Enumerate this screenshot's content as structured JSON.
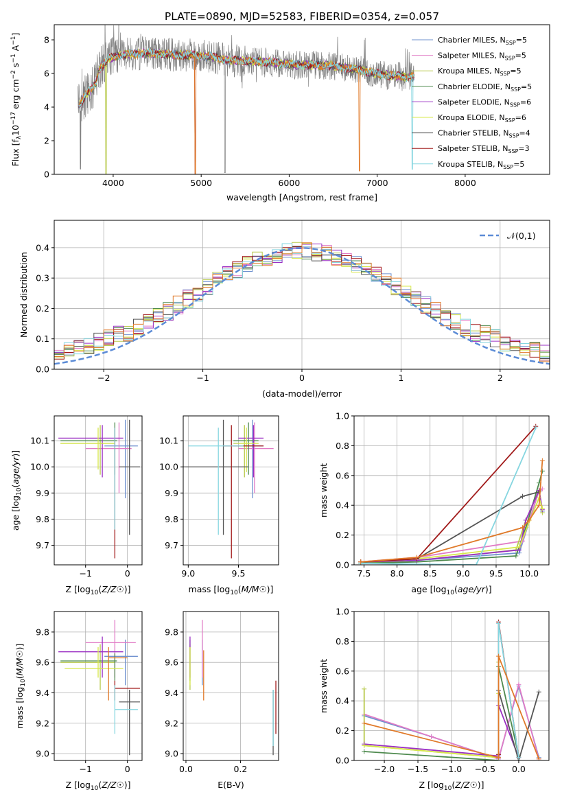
{
  "figure_title": "PLATE=0890, MJD=52583, FIBERID=0354, z=0.057",
  "models": [
    {
      "name": "Chabrier MILES",
      "n_ssp": "5",
      "color": "#6f91cf"
    },
    {
      "name": "Salpeter MILES",
      "n_ssp": "5",
      "color": "#e17bc6"
    },
    {
      "name": "Kroupa MILES",
      "n_ssp": "5",
      "color": "#b7c94a"
    },
    {
      "name": "Chabrier ELODIE",
      "n_ssp": "5",
      "color": "#4e8a4e"
    },
    {
      "name": "Salpeter ELODIE",
      "n_ssp": "6",
      "color": "#9a2fc3"
    },
    {
      "name": "Kroupa ELODIE",
      "n_ssp": "6",
      "color": "#d7e84a"
    },
    {
      "name": "Chabrier STELIB",
      "n_ssp": "4",
      "color": "#555555"
    },
    {
      "name": "Salpeter STELIB",
      "n_ssp": "3",
      "color": "#a11a1a"
    },
    {
      "name": "Kroupa STELIB",
      "n_ssp": "5",
      "color": "#86d6e0"
    }
  ],
  "extra_colors": {
    "data": "#808080",
    "orange": "#e07a2a",
    "grid": "#b0b0b0"
  },
  "chart_data": [
    {
      "id": "spectrum",
      "type": "line",
      "xlabel": "wavelength [Angstrom, rest frame]",
      "ylabel": "Flux [f",
      "ylabel_parts": [
        "Flux [f",
        "λ",
        "10",
        "−17",
        " erg cm",
        "−2",
        " s",
        "−1",
        " A",
        "−1",
        "]"
      ],
      "xlim": [
        3330,
        8960
      ],
      "ylim": [
        0,
        8.9
      ],
      "xticks": [
        4000,
        5000,
        6000,
        7000,
        8000
      ],
      "yticks": [
        0,
        2,
        4,
        6,
        8
      ],
      "grid": false,
      "legend_position": "upper right",
      "legend_entries": [
        "Chabrier MILES, N_SSP=5",
        "Salpeter MILES, N_SSP=5",
        "Kroupa MILES, N_SSP=5",
        "Chabrier ELODIE, N_SSP=5",
        "Salpeter ELODIE, N_SSP=6",
        "Kroupa ELODIE, N_SSP=6",
        "Chabrier STELIB, N_SSP=4",
        "Salpeter STELIB, N_SSP=3",
        "Kroupa STELIB, N_SSP=5"
      ],
      "data_range": [
        3600,
        7420
      ],
      "continuum": [
        [
          3600,
          4.0
        ],
        [
          3700,
          4.8
        ],
        [
          3800,
          5.4
        ],
        [
          3850,
          6.3
        ],
        [
          3950,
          6.9
        ],
        [
          4100,
          7.1
        ],
        [
          4300,
          7.2
        ],
        [
          4500,
          7.2
        ],
        [
          4700,
          7.1
        ],
        [
          4900,
          7.1
        ],
        [
          5100,
          7.0
        ],
        [
          5300,
          6.8
        ],
        [
          5500,
          6.75
        ],
        [
          5700,
          6.7
        ],
        [
          5900,
          6.6
        ],
        [
          6100,
          6.5
        ],
        [
          6300,
          6.5
        ],
        [
          6500,
          6.45
        ],
        [
          6700,
          6.3
        ],
        [
          6900,
          6.1
        ],
        [
          7100,
          5.9
        ],
        [
          7300,
          5.8
        ],
        [
          7420,
          5.8
        ]
      ]
    },
    {
      "id": "residuals",
      "type": "step",
      "xlabel": "(data-model)/error",
      "ylabel": "Normed distribution",
      "xlim": [
        -2.5,
        2.5
      ],
      "ylim": [
        0,
        0.49
      ],
      "xticks": [
        -2,
        -1,
        0,
        1,
        2
      ],
      "yticks": [
        0.0,
        0.1,
        0.2,
        0.3,
        0.4
      ],
      "grid": true,
      "legend_position": "upper right",
      "legend_entry": "𝒩(0,1)",
      "bin_width": 0.1,
      "normal": {
        "mu": 0,
        "sigma": 1
      }
    },
    {
      "id": "age-Z",
      "type": "errorbar",
      "xlabel": "Z [log10(Z/Z☉)]",
      "ylabel": "age  [log10(age/yr)]",
      "xlim": [
        -1.75,
        0.35
      ],
      "ylim": [
        9.625,
        10.195
      ],
      "xticks": [
        -1,
        0
      ],
      "yticks": [
        9.7,
        9.8,
        9.9,
        10.0,
        10.1
      ],
      "grid": true,
      "points": [
        {
          "m": 0,
          "x": -0.05,
          "y": 10.08,
          "xlo": -0.55,
          "xhi": 0.25,
          "ylo": 9.88,
          "yhi": 10.18
        },
        {
          "m": 1,
          "x": -0.2,
          "y": 10.07,
          "xlo": -1.0,
          "xhi": 0.1,
          "ylo": 9.9,
          "yhi": 10.17
        },
        {
          "m": 2,
          "x": -0.65,
          "y": 10.09,
          "xlo": -1.6,
          "xhi": -0.3,
          "ylo": 9.97,
          "yhi": 10.16
        },
        {
          "m": 3,
          "x": -0.3,
          "y": 10.1,
          "xlo": -1.6,
          "xhi": -0.25,
          "ylo": 9.97,
          "yhi": 10.17
        },
        {
          "m": 4,
          "x": -0.6,
          "y": 10.11,
          "xlo": -1.65,
          "xhi": -0.1,
          "ylo": 9.96,
          "yhi": 10.16
        },
        {
          "m": 5,
          "x": -0.7,
          "y": 10.09,
          "xlo": -1.6,
          "xhi": -0.3,
          "ylo": 9.99,
          "yhi": 10.15
        },
        {
          "m": 6,
          "x": 0.05,
          "y": 10.0,
          "xlo": -0.2,
          "xhi": 0.3,
          "ylo": 9.74,
          "yhi": 10.18
        },
        {
          "m": 7,
          "x": -0.3,
          "y": 9.85,
          "xlo": -0.3,
          "xhi": -0.3,
          "ylo": 9.65,
          "yhi": 10.15
        },
        {
          "m": 8,
          "x": -0.3,
          "y": 10.1,
          "xlo": -0.3,
          "xhi": -0.3,
          "ylo": 9.76,
          "yhi": 10.15
        }
      ]
    },
    {
      "id": "age-mass",
      "type": "errorbar",
      "xlabel": "mass [log10(M/M☉)]",
      "ylabel": "",
      "xlim": [
        8.95,
        9.9
      ],
      "ylim": [
        9.625,
        10.195
      ],
      "xticks": [
        9.0,
        9.5
      ],
      "yticks": [
        9.7,
        9.8,
        9.9,
        10.0,
        10.1
      ],
      "grid": true,
      "points": [
        {
          "m": 0,
          "x": 9.64,
          "y": 10.08,
          "xlo": 9.45,
          "xhi": 9.75,
          "ylo": 9.88,
          "yhi": 10.18
        },
        {
          "m": 1,
          "x": 9.66,
          "y": 10.07,
          "xlo": 9.5,
          "xhi": 9.85,
          "ylo": 9.9,
          "yhi": 10.17
        },
        {
          "m": 2,
          "x": 9.56,
          "y": 10.09,
          "xlo": 9.45,
          "xhi": 9.7,
          "ylo": 9.96,
          "yhi": 10.16
        },
        {
          "m": 3,
          "x": 9.6,
          "y": 10.1,
          "xlo": 9.45,
          "xhi": 9.7,
          "ylo": 9.97,
          "yhi": 10.17
        },
        {
          "m": 4,
          "x": 9.65,
          "y": 10.11,
          "xlo": 9.5,
          "xhi": 9.75,
          "ylo": 9.96,
          "yhi": 10.16
        },
        {
          "m": 5,
          "x": 9.58,
          "y": 10.09,
          "xlo": 9.5,
          "xhi": 9.7,
          "ylo": 9.98,
          "yhi": 10.15
        },
        {
          "m": 6,
          "x": 9.35,
          "y": 10.0,
          "xlo": 8.95,
          "xhi": 9.6,
          "ylo": 9.74,
          "yhi": 10.18
        },
        {
          "m": 7,
          "x": 9.43,
          "y": 10.08,
          "xlo": 9.35,
          "xhi": 9.75,
          "ylo": 9.65,
          "yhi": 10.16
        },
        {
          "m": 8,
          "x": 9.3,
          "y": 10.08,
          "xlo": 9.0,
          "xhi": 9.55,
          "ylo": 9.74,
          "yhi": 10.15
        }
      ]
    },
    {
      "id": "weight-age",
      "type": "line",
      "xlabel": "age  [log10(age/yr)]",
      "ylabel": "mass weight",
      "xlim": [
        7.35,
        10.3
      ],
      "ylim": [
        0,
        1.0
      ],
      "xticks": [
        7.5,
        8.0,
        8.5,
        9.0,
        9.5,
        10.0
      ],
      "yticks": [
        0.0,
        0.2,
        0.4,
        0.6,
        0.8,
        1.0
      ],
      "grid": true,
      "series": [
        {
          "m": 0,
          "x": [
            7.45,
            8.3,
            9.85,
            10.15,
            10.2
          ],
          "y": [
            0.02,
            0.03,
            0.08,
            0.5,
            0.36
          ]
        },
        {
          "m": 1,
          "x": [
            7.45,
            8.3,
            9.9,
            10.15,
            10.2
          ],
          "y": [
            0.02,
            0.05,
            0.16,
            0.5,
            0.51
          ]
        },
        {
          "m": 2,
          "x": [
            7.45,
            8.3,
            9.8,
            9.95,
            10.15,
            10.2
          ],
          "y": [
            0.01,
            0.03,
            0.1,
            0.3,
            0.5,
            0.35
          ]
        },
        {
          "m": 3,
          "x": [
            7.45,
            8.3,
            9.8,
            9.95,
            10.15,
            10.2
          ],
          "y": [
            0.01,
            0.02,
            0.06,
            0.25,
            0.55,
            0.63
          ]
        },
        {
          "m": 4,
          "x": [
            7.45,
            8.3,
            9.85,
            9.95,
            10.15,
            10.2
          ],
          "y": [
            0.02,
            0.03,
            0.1,
            0.3,
            0.5,
            0.37
          ]
        },
        {
          "m": 5,
          "x": [
            7.45,
            8.3,
            9.85,
            10.15,
            10.2
          ],
          "y": [
            0.02,
            0.04,
            0.12,
            0.45,
            0.38
          ]
        },
        {
          "m": 6,
          "x": [
            7.45,
            8.3,
            9.9,
            10.15
          ],
          "y": [
            0.02,
            0.04,
            0.46,
            0.49
          ]
        },
        {
          "m": 7,
          "x": [
            7.45,
            8.3,
            10.1
          ],
          "y": [
            0.02,
            0.04,
            0.93
          ]
        },
        {
          "m": 8,
          "x": [
            7.45,
            9.2,
            10.1
          ],
          "y": [
            0.01,
            0.0,
            0.92
          ]
        },
        {
          "m": 9,
          "x": [
            7.45,
            8.3,
            9.9,
            10.0,
            10.15,
            10.2
          ],
          "y": [
            0.02,
            0.05,
            0.25,
            0.3,
            0.4,
            0.7
          ]
        }
      ]
    },
    {
      "id": "mass-Z",
      "type": "errorbar",
      "xlabel": "Z [log10(Z/Z☉)]",
      "ylabel": "mass [log10(M/M☉)]",
      "xlim": [
        -1.75,
        0.35
      ],
      "ylim": [
        8.955,
        9.935
      ],
      "xticks": [
        -1,
        0
      ],
      "yticks": [
        9.0,
        9.2,
        9.4,
        9.6,
        9.8
      ],
      "grid": true,
      "points": [
        {
          "m": 0,
          "x": -0.05,
          "y": 9.64,
          "xlo": -0.55,
          "xhi": 0.25,
          "ylo": 9.45,
          "yhi": 9.75
        },
        {
          "m": 1,
          "x": -0.3,
          "y": 9.73,
          "xlo": -1.0,
          "xhi": 0.2,
          "ylo": 9.5,
          "yhi": 9.88
        },
        {
          "m": 2,
          "x": -0.65,
          "y": 9.6,
          "xlo": -1.6,
          "xhi": -0.3,
          "ylo": 9.42,
          "yhi": 9.72
        },
        {
          "m": 3,
          "x": -0.3,
          "y": 9.61,
          "xlo": -1.6,
          "xhi": -0.25,
          "ylo": 9.48,
          "yhi": 9.66
        },
        {
          "m": 4,
          "x": -0.6,
          "y": 9.67,
          "xlo": -1.65,
          "xhi": -0.1,
          "ylo": 9.5,
          "yhi": 9.77
        },
        {
          "m": 5,
          "x": -0.7,
          "y": 9.56,
          "xlo": -1.5,
          "xhi": -0.1,
          "ylo": 9.5,
          "yhi": 9.7
        },
        {
          "m": 6,
          "x": 0.05,
          "y": 9.34,
          "xlo": -0.2,
          "xhi": 0.3,
          "ylo": 8.99,
          "yhi": 9.42
        },
        {
          "m": 7,
          "x": -0.3,
          "y": 9.43,
          "xlo": -0.3,
          "xhi": 0.3,
          "ylo": 9.35,
          "yhi": 9.48
        },
        {
          "m": 8,
          "x": -0.3,
          "y": 9.29,
          "xlo": -0.3,
          "xhi": 0.25,
          "ylo": 9.13,
          "yhi": 9.45
        },
        {
          "m": 9,
          "x": -0.45,
          "y": 9.63,
          "xlo": -0.45,
          "xhi": 0.0,
          "ylo": 9.35,
          "yhi": 9.7
        }
      ]
    },
    {
      "id": "mass-ebv",
      "type": "errorbar",
      "xlabel": "E(B-V)",
      "ylabel": "",
      "xlim": [
        -0.01,
        0.34
      ],
      "ylim": [
        8.955,
        9.935
      ],
      "xticks": [
        0.0,
        0.2
      ],
      "yticks": [
        9.0,
        9.2,
        9.4,
        9.6,
        9.8
      ],
      "grid": true,
      "points": [
        {
          "m": 0,
          "x": 0.06,
          "y": 9.64,
          "ylo": 9.45,
          "yhi": 9.75
        },
        {
          "m": 1,
          "x": 0.06,
          "y": 9.73,
          "ylo": 9.5,
          "yhi": 9.88
        },
        {
          "m": 2,
          "x": 0.015,
          "y": 9.6,
          "ylo": 9.42,
          "yhi": 9.72
        },
        {
          "m": 3,
          "x": 0.015,
          "y": 9.61,
          "ylo": 9.48,
          "yhi": 9.75
        },
        {
          "m": 4,
          "x": 0.015,
          "y": 9.67,
          "ylo": 9.5,
          "yhi": 9.77
        },
        {
          "m": 5,
          "x": 0.015,
          "y": 9.56,
          "ylo": 9.45,
          "yhi": 9.7
        },
        {
          "m": 6,
          "x": 0.32,
          "y": 9.34,
          "ylo": 8.99,
          "yhi": 9.42
        },
        {
          "m": 7,
          "x": 0.33,
          "y": 9.43,
          "ylo": 9.13,
          "yhi": 9.48
        },
        {
          "m": 8,
          "x": 0.32,
          "y": 9.29,
          "ylo": 9.05,
          "yhi": 9.42
        },
        {
          "m": 9,
          "x": 0.065,
          "y": 9.5,
          "ylo": 9.35,
          "yhi": 9.68
        }
      ]
    },
    {
      "id": "weight-Z",
      "type": "line",
      "xlabel": "Z [log10(Z/Z☉)]",
      "ylabel": "mass weight",
      "xlim": [
        -2.45,
        0.45
      ],
      "ylim": [
        0,
        1.0
      ],
      "xticks": [
        -2.0,
        -1.5,
        -1.0,
        -0.5,
        0.0
      ],
      "yticks": [
        0.0,
        0.2,
        0.4,
        0.6,
        0.8,
        1.0
      ],
      "grid": true,
      "series": [
        {
          "m": 0,
          "x": [
            -2.3,
            -1.3,
            -0.3,
            0.0,
            0.3
          ],
          "y": [
            0.3,
            0.16,
            0.01,
            0.5,
            0.02
          ]
        },
        {
          "m": 1,
          "x": [
            -2.3,
            -1.3,
            -0.3,
            0.0,
            0.3
          ],
          "y": [
            0.31,
            0.16,
            0.01,
            0.51,
            0.01
          ]
        },
        {
          "m": 2,
          "x": [
            -2.3,
            -2.3,
            -0.3,
            -0.3
          ],
          "y": [
            0.48,
            0.1,
            0.02,
            0.66
          ]
        },
        {
          "m": 3,
          "x": [
            -2.3,
            -0.3,
            -0.3,
            0.0
          ],
          "y": [
            0.06,
            0.0,
            0.63,
            0.03
          ]
        },
        {
          "m": 4,
          "x": [
            -2.3,
            -0.3,
            -0.3,
            0.0
          ],
          "y": [
            0.11,
            0.03,
            0.37,
            0.02
          ]
        },
        {
          "m": 5,
          "x": [
            -2.3,
            -0.3,
            -0.3
          ],
          "y": [
            0.1,
            0.02,
            0.45
          ]
        },
        {
          "m": 6,
          "x": [
            -0.3,
            -0.3,
            0.0,
            0.3
          ],
          "y": [
            0.04,
            0.47,
            0.0,
            0.46
          ]
        },
        {
          "m": 7,
          "x": [
            -0.3,
            -0.3,
            0.0
          ],
          "y": [
            0.04,
            0.93,
            0.02
          ]
        },
        {
          "m": 8,
          "x": [
            -0.3,
            -0.3,
            0.0
          ],
          "y": [
            0.0,
            0.92,
            0.02
          ]
        },
        {
          "m": 9,
          "x": [
            -2.3,
            -0.3,
            -0.3,
            0.3
          ],
          "y": [
            0.25,
            0.02,
            0.7,
            0.01
          ]
        }
      ]
    }
  ]
}
